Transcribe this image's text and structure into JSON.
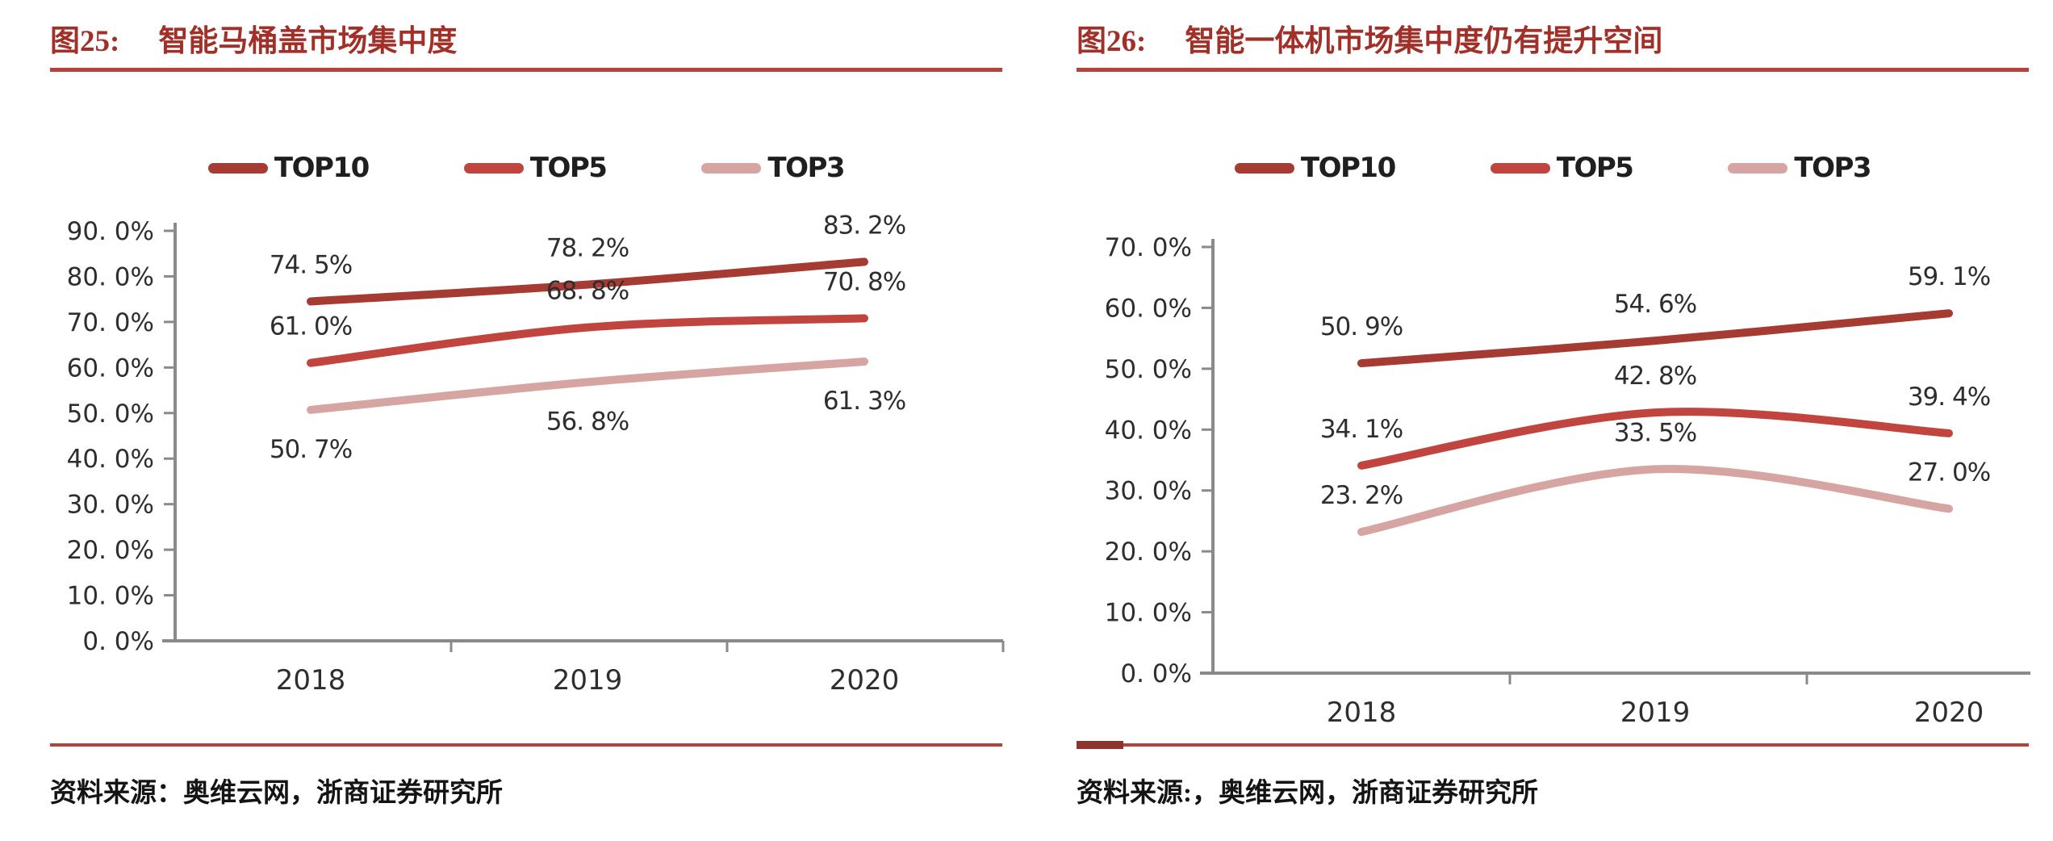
{
  "colors": {
    "top10": "#A63B33",
    "top5": "#C1453E",
    "top3": "#D7A5A1",
    "title_red": "#A03028",
    "rule_red": "#B5433C",
    "rule_stub_dark": "#8E3430",
    "axis_gray": "#8A8A8A",
    "chart_text": "#2E2E2E"
  },
  "chart_data": [
    {
      "type": "line",
      "figure_label": "图25:",
      "title": "智能马桶盖市场集中度",
      "categories": [
        "2018",
        "2019",
        "2020"
      ],
      "series": [
        {
          "name": "TOP10",
          "color_key": "top10",
          "label_position": "above",
          "values": [
            74.5,
            78.2,
            83.2
          ],
          "labels": [
            "74. 5%",
            "78. 2%",
            "83. 2%"
          ]
        },
        {
          "name": "TOP5",
          "color_key": "top5",
          "label_position": "above",
          "values": [
            61.0,
            68.8,
            70.8
          ],
          "labels": [
            "61. 0%",
            "68. 8%",
            "70. 8%"
          ]
        },
        {
          "name": "TOP3",
          "color_key": "top3",
          "label_position": "below",
          "values": [
            50.7,
            56.8,
            61.3
          ],
          "labels": [
            "50. 7%",
            "56. 8%",
            "61. 3%"
          ]
        }
      ],
      "ylim": [
        0,
        90
      ],
      "ytick_step": 10,
      "ytick_labels": [
        "0. 0%",
        "10. 0%",
        "20. 0%",
        "30. 0%",
        "40. 0%",
        "50. 0%",
        "60. 0%",
        "70. 0%",
        "80. 0%",
        "90. 0%"
      ],
      "legend_position": "top",
      "grid": false,
      "line_style": "smooth",
      "source": "资料来源：奥维云网，浙商证券研究所"
    },
    {
      "type": "line",
      "figure_label": "图26:",
      "title": "智能一体机市场集中度仍有提升空间",
      "categories": [
        "2018",
        "2019",
        "2020"
      ],
      "series": [
        {
          "name": "TOP10",
          "color_key": "top10",
          "label_position": "above",
          "values": [
            50.9,
            54.6,
            59.1
          ],
          "labels": [
            "50. 9%",
            "54. 6%",
            "59. 1%"
          ]
        },
        {
          "name": "TOP5",
          "color_key": "top5",
          "label_position": "above",
          "values": [
            34.1,
            42.8,
            39.4
          ],
          "labels": [
            "34. 1%",
            "42. 8%",
            "39. 4%"
          ]
        },
        {
          "name": "TOP3",
          "color_key": "top3",
          "label_position": "above",
          "values": [
            23.2,
            33.5,
            27.0
          ],
          "labels": [
            "23. 2%",
            "33. 5%",
            "27. 0%"
          ]
        }
      ],
      "ylim": [
        0,
        70
      ],
      "ytick_step": 10,
      "ytick_labels": [
        "0. 0%",
        "10. 0%",
        "20. 0%",
        "30. 0%",
        "40. 0%",
        "50. 0%",
        "60. 0%",
        "70. 0%"
      ],
      "legend_position": "top",
      "grid": false,
      "line_style": "smooth",
      "source": "资料来源:，奥维云网，浙商证券研究所"
    }
  ]
}
